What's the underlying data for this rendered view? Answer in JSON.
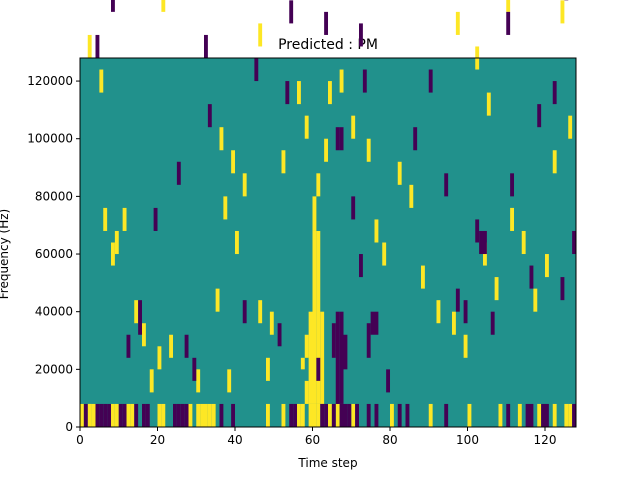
{
  "chart_data": {
    "type": "heatmap",
    "title": "Predicted : PM",
    "xlabel": "Time step",
    "ylabel": "Frequency (Hz)",
    "xlim": [
      0,
      128
    ],
    "ylim": [
      0,
      128000
    ],
    "xticks": [
      0,
      20,
      40,
      60,
      80,
      100,
      120
    ],
    "yticks": [
      0,
      20000,
      40000,
      60000,
      80000,
      100000,
      120000
    ],
    "xtick_labels": [
      "0",
      "20",
      "40",
      "60",
      "80",
      "100",
      "120"
    ],
    "ytick_labels": [
      "0",
      "20000",
      "40000",
      "60000",
      "80000",
      "100000",
      "120000"
    ],
    "colormap": "viridis",
    "background_value": 0,
    "value_colors": {
      "-1": "#440154",
      "0": "#21918c",
      "1": "#fde725"
    },
    "grid": false,
    "cell_height_hz": 2000,
    "cells_high": [
      [
        0,
        0,
        4
      ],
      [
        2,
        0,
        4
      ],
      [
        3,
        0,
        4
      ],
      [
        8,
        0,
        4
      ],
      [
        9,
        0,
        4
      ],
      [
        12,
        0,
        4
      ],
      [
        13,
        0,
        4
      ],
      [
        20,
        0,
        4
      ],
      [
        21,
        0,
        4
      ],
      [
        28,
        0,
        4
      ],
      [
        30,
        0,
        4
      ],
      [
        31,
        0,
        4
      ],
      [
        32,
        0,
        4
      ],
      [
        33,
        0,
        4
      ],
      [
        34,
        0,
        4
      ],
      [
        48,
        0,
        4
      ],
      [
        52,
        0,
        4
      ],
      [
        56,
        0,
        4
      ],
      [
        57,
        0,
        4
      ],
      [
        59,
        0,
        4
      ],
      [
        60,
        0,
        4
      ],
      [
        61,
        0,
        4
      ],
      [
        64,
        0,
        4
      ],
      [
        66,
        0,
        4
      ],
      [
        70,
        0,
        4
      ],
      [
        80,
        0,
        4
      ],
      [
        90,
        0,
        4
      ],
      [
        100,
        0,
        4
      ],
      [
        108,
        0,
        4
      ],
      [
        113,
        0,
        4
      ],
      [
        118,
        0,
        4
      ],
      [
        122,
        0,
        4
      ],
      [
        125,
        0,
        4
      ],
      [
        126,
        0,
        4
      ],
      [
        58,
        4,
        8
      ],
      [
        59,
        4,
        20
      ],
      [
        60,
        4,
        34
      ],
      [
        61,
        4,
        34
      ],
      [
        62,
        4,
        20
      ],
      [
        57,
        10,
        12
      ],
      [
        58,
        12,
        16
      ],
      [
        60,
        34,
        40
      ],
      [
        61,
        40,
        44
      ],
      [
        63,
        46,
        50
      ],
      [
        38,
        6,
        10
      ],
      [
        48,
        8,
        12
      ],
      [
        46,
        18,
        22
      ],
      [
        49,
        16,
        20
      ],
      [
        35,
        20,
        24
      ],
      [
        30,
        6,
        10
      ],
      [
        20,
        10,
        14
      ],
      [
        23,
        12,
        16
      ],
      [
        16,
        14,
        18
      ],
      [
        9,
        30,
        34
      ],
      [
        11,
        34,
        38
      ],
      [
        6,
        34,
        38
      ],
      [
        8,
        28,
        32
      ],
      [
        14,
        18,
        22
      ],
      [
        2,
        0,
        4
      ],
      [
        18,
        6,
        10
      ],
      [
        40,
        30,
        34
      ],
      [
        37,
        36,
        40
      ],
      [
        42,
        40,
        44
      ],
      [
        39,
        44,
        48
      ],
      [
        36,
        48,
        52
      ],
      [
        52,
        44,
        48
      ],
      [
        56,
        56,
        60
      ],
      [
        58,
        50,
        54
      ],
      [
        64,
        56,
        60
      ],
      [
        67,
        58,
        62
      ],
      [
        70,
        50,
        54
      ],
      [
        74,
        46,
        50
      ],
      [
        76,
        32,
        36
      ],
      [
        78,
        28,
        32
      ],
      [
        82,
        42,
        46
      ],
      [
        85,
        38,
        42
      ],
      [
        88,
        24,
        28
      ],
      [
        92,
        18,
        22
      ],
      [
        96,
        16,
        20
      ],
      [
        99,
        12,
        16
      ],
      [
        104,
        28,
        32
      ],
      [
        107,
        22,
        26
      ],
      [
        111,
        34,
        38
      ],
      [
        114,
        30,
        34
      ],
      [
        117,
        20,
        24
      ],
      [
        120,
        26,
        30
      ],
      [
        122,
        44,
        48
      ],
      [
        126,
        50,
        54
      ],
      [
        1,
        80,
        84
      ],
      [
        2,
        64,
        68
      ],
      [
        5,
        58,
        62
      ],
      [
        10,
        90,
        94
      ],
      [
        13,
        96,
        100
      ],
      [
        18,
        80,
        84
      ],
      [
        21,
        72,
        76
      ],
      [
        24,
        86,
        90
      ],
      [
        27,
        100,
        104
      ],
      [
        30,
        104,
        108
      ],
      [
        35,
        92,
        96
      ],
      [
        39,
        110,
        114
      ],
      [
        43,
        78,
        82
      ],
      [
        46,
        66,
        70
      ],
      [
        50,
        92,
        96
      ],
      [
        55,
        86,
        90
      ],
      [
        62,
        82,
        86
      ],
      [
        68,
        94,
        98
      ],
      [
        71,
        86,
        90
      ],
      [
        75,
        76,
        80
      ],
      [
        79,
        92,
        96
      ],
      [
        84,
        100,
        104
      ],
      [
        88,
        112,
        116
      ],
      [
        93,
        84,
        88
      ],
      [
        97,
        68,
        72
      ],
      [
        102,
        62,
        66
      ],
      [
        105,
        54,
        58
      ],
      [
        110,
        72,
        76
      ],
      [
        115,
        96,
        100
      ],
      [
        119,
        108,
        112
      ],
      [
        121,
        80,
        84
      ],
      [
        124,
        70,
        74
      ],
      [
        127,
        116,
        120
      ],
      [
        3,
        110,
        114
      ],
      [
        7,
        120,
        124
      ],
      [
        14,
        104,
        108
      ],
      [
        23,
        114,
        118
      ],
      [
        29,
        124,
        128
      ],
      [
        37,
        116,
        120
      ],
      [
        45,
        122,
        126
      ],
      [
        53,
        108,
        112
      ],
      [
        56,
        116,
        120
      ],
      [
        58,
        120,
        124
      ],
      [
        60,
        116,
        120
      ],
      [
        63,
        124,
        128
      ],
      [
        73,
        118,
        122
      ],
      [
        82,
        122,
        126
      ],
      [
        91,
        104,
        108
      ],
      [
        98,
        114,
        118
      ],
      [
        103,
        120,
        124
      ],
      [
        109,
        110,
        114
      ],
      [
        113,
        118,
        122
      ],
      [
        118,
        104,
        108
      ],
      [
        123,
        116,
        120
      ],
      [
        126,
        112,
        116
      ]
    ],
    "cells_low": [
      [
        1,
        0,
        4
      ],
      [
        4,
        0,
        4
      ],
      [
        5,
        0,
        4
      ],
      [
        6,
        0,
        4
      ],
      [
        7,
        0,
        4
      ],
      [
        10,
        0,
        4
      ],
      [
        11,
        0,
        4
      ],
      [
        14,
        0,
        4
      ],
      [
        16,
        0,
        4
      ],
      [
        17,
        0,
        4
      ],
      [
        24,
        0,
        4
      ],
      [
        25,
        0,
        4
      ],
      [
        26,
        0,
        4
      ],
      [
        27,
        0,
        4
      ],
      [
        36,
        0,
        4
      ],
      [
        39,
        0,
        4
      ],
      [
        54,
        0,
        4
      ],
      [
        55,
        0,
        4
      ],
      [
        62,
        0,
        4
      ],
      [
        63,
        0,
        4
      ],
      [
        65,
        0,
        4
      ],
      [
        67,
        0,
        4
      ],
      [
        68,
        0,
        4
      ],
      [
        69,
        0,
        4
      ],
      [
        71,
        0,
        4
      ],
      [
        74,
        0,
        4
      ],
      [
        76,
        0,
        4
      ],
      [
        82,
        0,
        4
      ],
      [
        84,
        0,
        4
      ],
      [
        94,
        0,
        4
      ],
      [
        110,
        0,
        4
      ],
      [
        115,
        0,
        4
      ],
      [
        116,
        0,
        4
      ],
      [
        119,
        0,
        4
      ],
      [
        120,
        0,
        4
      ],
      [
        127,
        0,
        4
      ],
      [
        66,
        4,
        20
      ],
      [
        67,
        4,
        20
      ],
      [
        68,
        10,
        16
      ],
      [
        65,
        12,
        18
      ],
      [
        74,
        12,
        18
      ],
      [
        75,
        16,
        20
      ],
      [
        76,
        16,
        20
      ],
      [
        79,
        6,
        10
      ],
      [
        27,
        12,
        16
      ],
      [
        29,
        8,
        12
      ],
      [
        15,
        16,
        22
      ],
      [
        12,
        12,
        16
      ],
      [
        42,
        18,
        22
      ],
      [
        51,
        14,
        18
      ],
      [
        61,
        8,
        12
      ],
      [
        70,
        36,
        40
      ],
      [
        72,
        26,
        30
      ],
      [
        73,
        58,
        62
      ],
      [
        66,
        48,
        52
      ],
      [
        67,
        48,
        52
      ],
      [
        71,
        78,
        82
      ],
      [
        74,
        92,
        96
      ],
      [
        53,
        56,
        60
      ],
      [
        45,
        60,
        64
      ],
      [
        33,
        52,
        56
      ],
      [
        25,
        42,
        46
      ],
      [
        19,
        34,
        38
      ],
      [
        97,
        20,
        24
      ],
      [
        99,
        18,
        22
      ],
      [
        102,
        32,
        36
      ],
      [
        106,
        16,
        20
      ],
      [
        111,
        40,
        44
      ],
      [
        116,
        24,
        28
      ],
      [
        118,
        52,
        56
      ],
      [
        122,
        56,
        60
      ],
      [
        124,
        22,
        26
      ],
      [
        127,
        30,
        34
      ],
      [
        103,
        30,
        34
      ],
      [
        104,
        30,
        34
      ],
      [
        86,
        48,
        52
      ],
      [
        90,
        58,
        62
      ],
      [
        94,
        40,
        44
      ],
      [
        4,
        64,
        68
      ],
      [
        8,
        72,
        76
      ],
      [
        12,
        86,
        90
      ],
      [
        17,
        100,
        104
      ],
      [
        22,
        76,
        80
      ],
      [
        28,
        120,
        124
      ],
      [
        32,
        64,
        68
      ],
      [
        36,
        112,
        116
      ],
      [
        41,
        84,
        88
      ],
      [
        47,
        104,
        108
      ],
      [
        51,
        90,
        94
      ],
      [
        54,
        70,
        74
      ],
      [
        58,
        80,
        84
      ],
      [
        63,
        68,
        72
      ],
      [
        69,
        102,
        106
      ],
      [
        72,
        66,
        70
      ],
      [
        77,
        82,
        86
      ],
      [
        81,
        118,
        122
      ],
      [
        86,
        96,
        100
      ],
      [
        89,
        84,
        88
      ],
      [
        95,
        76,
        80
      ],
      [
        100,
        106,
        110
      ],
      [
        106,
        92,
        96
      ],
      [
        110,
        68,
        72
      ],
      [
        113,
        88,
        92
      ],
      [
        117,
        114,
        118
      ],
      [
        120,
        96,
        100
      ],
      [
        125,
        74,
        78
      ],
      [
        2,
        124,
        128
      ],
      [
        9,
        118,
        122
      ],
      [
        16,
        112,
        116
      ],
      [
        26,
        108,
        112
      ],
      [
        44,
        96,
        100
      ],
      [
        57,
        124,
        128
      ],
      [
        64,
        110,
        114
      ],
      [
        78,
        104,
        108
      ],
      [
        92,
        120,
        124
      ],
      [
        105,
        124,
        128
      ],
      [
        112,
        112,
        116
      ],
      [
        121,
        122,
        126
      ]
    ]
  }
}
